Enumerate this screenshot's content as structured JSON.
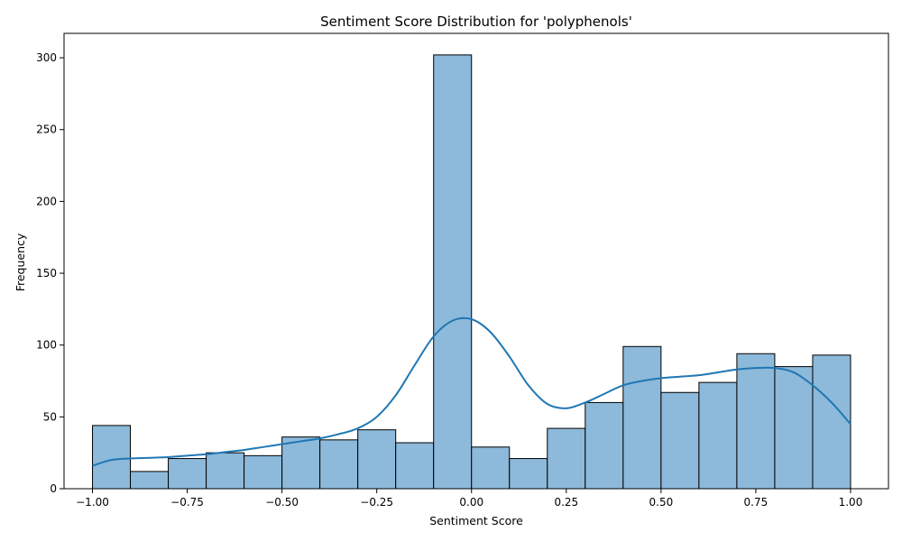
{
  "chart_data": {
    "type": "bar",
    "title": "Sentiment Score Distribution for 'polyphenols'",
    "xlabel": "Sentiment Score",
    "ylabel": "Frequency",
    "xlim": [
      -1.075,
      1.1
    ],
    "ylim": [
      0,
      317
    ],
    "xticks": [
      -1.0,
      -0.75,
      -0.5,
      -0.25,
      0.0,
      0.25,
      0.5,
      0.75,
      1.0
    ],
    "xtick_labels": [
      "−1.00",
      "−0.75",
      "−0.50",
      "−0.25",
      "0.00",
      "0.25",
      "0.50",
      "0.75",
      "1.00"
    ],
    "yticks": [
      0,
      50,
      100,
      150,
      200,
      250,
      300
    ],
    "ytick_labels": [
      "0",
      "50",
      "100",
      "150",
      "200",
      "250",
      "300"
    ],
    "bin_edges": [
      -1.0,
      -0.9,
      -0.8,
      -0.7,
      -0.6,
      -0.5,
      -0.4,
      -0.3,
      -0.2,
      -0.1,
      0.0,
      0.1,
      0.2,
      0.3,
      0.4,
      0.5,
      0.6,
      0.7,
      0.8,
      0.9,
      1.0
    ],
    "values": [
      44,
      12,
      21,
      25,
      23,
      36,
      34,
      41,
      32,
      302,
      29,
      21,
      42,
      60,
      99,
      67,
      74,
      94,
      85,
      93
    ],
    "kde": {
      "x": [
        -1.0,
        -0.95,
        -0.9,
        -0.85,
        -0.8,
        -0.75,
        -0.7,
        -0.65,
        -0.6,
        -0.55,
        -0.5,
        -0.45,
        -0.4,
        -0.35,
        -0.3,
        -0.25,
        -0.2,
        -0.15,
        -0.1,
        -0.05,
        0.0,
        0.05,
        0.1,
        0.15,
        0.2,
        0.25,
        0.3,
        0.35,
        0.4,
        0.45,
        0.5,
        0.55,
        0.6,
        0.65,
        0.7,
        0.75,
        0.8,
        0.85,
        0.9,
        0.95,
        1.0
      ],
      "y": [
        16,
        20,
        21,
        21.5,
        22,
        23,
        24,
        25.5,
        27,
        29,
        31,
        33,
        35,
        38,
        42,
        50,
        65,
        86,
        106,
        117,
        118,
        109,
        92,
        72,
        59,
        56,
        60,
        66,
        72,
        75,
        77,
        78,
        79,
        81,
        83,
        84,
        84,
        81,
        72,
        60,
        45
      ]
    },
    "colors": {
      "bar_fill": "#8db9da",
      "bar_edge": "#000000",
      "kde_line": "#1f77b4"
    },
    "grid": false,
    "legend": "none"
  }
}
